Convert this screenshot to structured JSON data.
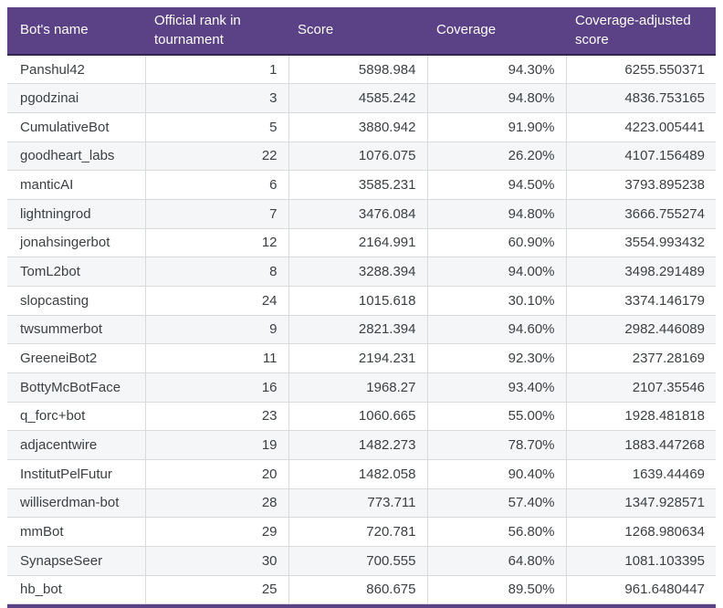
{
  "colors": {
    "header_bg": "#5b4287",
    "header_border": "#33254f",
    "header_text": "#fdfdfd",
    "row_alt_bg": "#f5f6f8",
    "grid_border": "#d9dadc",
    "body_text": "#3c4043"
  },
  "chart_data": {
    "type": "table",
    "columns": [
      "Bot's name",
      "Official rank in tournament",
      "Score",
      "Coverage",
      "Coverage-adjusted score"
    ],
    "rows": [
      {
        "name": "Panshul42",
        "rank": 1,
        "score": 5898.984,
        "coverage": "94.30%",
        "adjusted_score": 6255.550371
      },
      {
        "name": "pgodzinai",
        "rank": 3,
        "score": 4585.242,
        "coverage": "94.80%",
        "adjusted_score": 4836.753165
      },
      {
        "name": "CumulativeBot",
        "rank": 5,
        "score": 3880.942,
        "coverage": "91.90%",
        "adjusted_score": 4223.005441
      },
      {
        "name": "goodheart_labs",
        "rank": 22,
        "score": 1076.075,
        "coverage": "26.20%",
        "adjusted_score": 4107.156489
      },
      {
        "name": "manticAI",
        "rank": 6,
        "score": 3585.231,
        "coverage": "94.50%",
        "adjusted_score": 3793.895238
      },
      {
        "name": "lightningrod",
        "rank": 7,
        "score": 3476.084,
        "coverage": "94.80%",
        "adjusted_score": 3666.755274
      },
      {
        "name": "jonahsingerbot",
        "rank": 12,
        "score": 2164.991,
        "coverage": "60.90%",
        "adjusted_score": 3554.993432
      },
      {
        "name": "TomL2bot",
        "rank": 8,
        "score": 3288.394,
        "coverage": "94.00%",
        "adjusted_score": 3498.291489
      },
      {
        "name": "slopcasting",
        "rank": 24,
        "score": 1015.618,
        "coverage": "30.10%",
        "adjusted_score": 3374.146179
      },
      {
        "name": "twsummerbot",
        "rank": 9,
        "score": 2821.394,
        "coverage": "94.60%",
        "adjusted_score": 2982.446089
      },
      {
        "name": "GreeneiBot2",
        "rank": 11,
        "score": 2194.231,
        "coverage": "92.30%",
        "adjusted_score": 2377.28169
      },
      {
        "name": "BottyMcBotFace",
        "rank": 16,
        "score": 1968.27,
        "coverage": "93.40%",
        "adjusted_score": 2107.35546
      },
      {
        "name": "q_forc+bot",
        "rank": 23,
        "score": 1060.665,
        "coverage": "55.00%",
        "adjusted_score": 1928.481818
      },
      {
        "name": "adjacentwire",
        "rank": 19,
        "score": 1482.273,
        "coverage": "78.70%",
        "adjusted_score": 1883.447268
      },
      {
        "name": "InstitutPelFutur",
        "rank": 20,
        "score": 1482.058,
        "coverage": "90.40%",
        "adjusted_score": 1639.44469
      },
      {
        "name": "williserdman-bot",
        "rank": 28,
        "score": 773.711,
        "coverage": "57.40%",
        "adjusted_score": 1347.928571
      },
      {
        "name": "mmBot",
        "rank": 29,
        "score": 720.781,
        "coverage": "56.80%",
        "adjusted_score": 1268.980634
      },
      {
        "name": "SynapseSeer",
        "rank": 30,
        "score": 700.555,
        "coverage": "64.80%",
        "adjusted_score": 1081.103395
      },
      {
        "name": "hb_bot",
        "rank": 25,
        "score": 860.675,
        "coverage": "89.50%",
        "adjusted_score": 961.6480447
      }
    ]
  }
}
